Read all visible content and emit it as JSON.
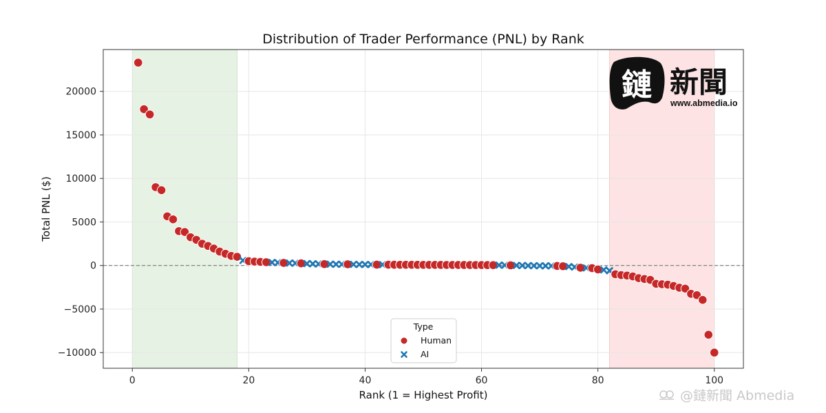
{
  "colors": {
    "human": "#c62828",
    "ai": "#1f77b4",
    "top_band": "#e6f2e4",
    "bottom_band": "#fde3e3",
    "grid": "#e6e6e6",
    "zero_line": "#777777"
  },
  "chart_data": {
    "type": "scatter",
    "title": "Distribution of Trader Performance (PNL) by Rank",
    "xlabel": "Rank (1 = Highest Profit)",
    "ylabel": "Total PNL ($)",
    "xlim": [
      -5,
      105
    ],
    "ylim": [
      -11800,
      24800
    ],
    "xticks": [
      0,
      20,
      40,
      60,
      80,
      100
    ],
    "yticks": [
      -10000,
      -5000,
      0,
      5000,
      10000,
      15000,
      20000
    ],
    "grid": true,
    "zero_line": 0,
    "highlight_bands": [
      {
        "x": [
          0,
          18
        ],
        "color": "green"
      },
      {
        "x": [
          82,
          100
        ],
        "color": "red"
      }
    ],
    "legend": {
      "title": "Type",
      "placement": "lower-center",
      "entries": [
        {
          "label": "Human",
          "marker": "circle",
          "series": "human"
        },
        {
          "label": "AI",
          "marker": "x",
          "series": "ai"
        }
      ]
    },
    "series": [
      {
        "name": "Human",
        "marker": "circle",
        "points": [
          [
            1,
            23300
          ],
          [
            2,
            17950
          ],
          [
            3,
            17350
          ],
          [
            4,
            9000
          ],
          [
            5,
            8650
          ],
          [
            6,
            5650
          ],
          [
            7,
            5300
          ],
          [
            8,
            3950
          ],
          [
            9,
            3850
          ],
          [
            10,
            3250
          ],
          [
            11,
            2950
          ],
          [
            12,
            2500
          ],
          [
            13,
            2250
          ],
          [
            14,
            1950
          ],
          [
            15,
            1600
          ],
          [
            16,
            1350
          ],
          [
            17,
            1100
          ],
          [
            18,
            1000
          ],
          [
            20,
            500
          ],
          [
            21,
            450
          ],
          [
            22,
            420
          ],
          [
            23,
            380
          ],
          [
            26,
            300
          ],
          [
            29,
            250
          ],
          [
            33,
            160
          ],
          [
            37,
            140
          ],
          [
            42,
            100
          ],
          [
            44,
            95
          ],
          [
            45,
            90
          ],
          [
            46,
            88
          ],
          [
            47,
            85
          ],
          [
            48,
            82
          ],
          [
            49,
            80
          ],
          [
            50,
            78
          ],
          [
            51,
            75
          ],
          [
            52,
            72
          ],
          [
            53,
            70
          ],
          [
            54,
            68
          ],
          [
            55,
            65
          ],
          [
            56,
            62
          ],
          [
            57,
            60
          ],
          [
            58,
            57
          ],
          [
            59,
            55
          ],
          [
            60,
            52
          ],
          [
            61,
            50
          ],
          [
            62,
            45
          ],
          [
            65,
            20
          ],
          [
            73,
            -50
          ],
          [
            74,
            -80
          ],
          [
            77,
            -250
          ],
          [
            79,
            -300
          ],
          [
            80,
            -450
          ],
          [
            83,
            -1000
          ],
          [
            84,
            -1100
          ],
          [
            85,
            -1150
          ],
          [
            86,
            -1250
          ],
          [
            87,
            -1450
          ],
          [
            88,
            -1550
          ],
          [
            89,
            -1650
          ],
          [
            90,
            -2100
          ],
          [
            91,
            -2150
          ],
          [
            92,
            -2200
          ],
          [
            93,
            -2350
          ],
          [
            94,
            -2550
          ],
          [
            95,
            -2650
          ],
          [
            96,
            -3250
          ],
          [
            97,
            -3400
          ],
          [
            98,
            -3950
          ],
          [
            99,
            -7950
          ],
          [
            100,
            -10000
          ]
        ]
      },
      {
        "name": "AI",
        "marker": "x",
        "points": [
          [
            19,
            580
          ],
          [
            24,
            350
          ],
          [
            25,
            330
          ],
          [
            27,
            280
          ],
          [
            28,
            270
          ],
          [
            30,
            220
          ],
          [
            31,
            200
          ],
          [
            32,
            180
          ],
          [
            34,
            150
          ],
          [
            35,
            145
          ],
          [
            36,
            140
          ],
          [
            38,
            130
          ],
          [
            39,
            120
          ],
          [
            40,
            115
          ],
          [
            41,
            110
          ],
          [
            43,
            100
          ],
          [
            63,
            40
          ],
          [
            64,
            30
          ],
          [
            66,
            10
          ],
          [
            67,
            0
          ],
          [
            68,
            -10
          ],
          [
            69,
            -20
          ],
          [
            70,
            -30
          ],
          [
            71,
            -35
          ],
          [
            72,
            -40
          ],
          [
            75,
            -120
          ],
          [
            76,
            -180
          ],
          [
            78,
            -280
          ],
          [
            81,
            -500
          ],
          [
            82,
            -600
          ]
        ]
      }
    ]
  },
  "watermark": {
    "logo_glyph": "鏈",
    "logo_text": "新聞",
    "logo_url": "www.abmedia.io",
    "footer": "@鏈新聞 Abmedia"
  }
}
